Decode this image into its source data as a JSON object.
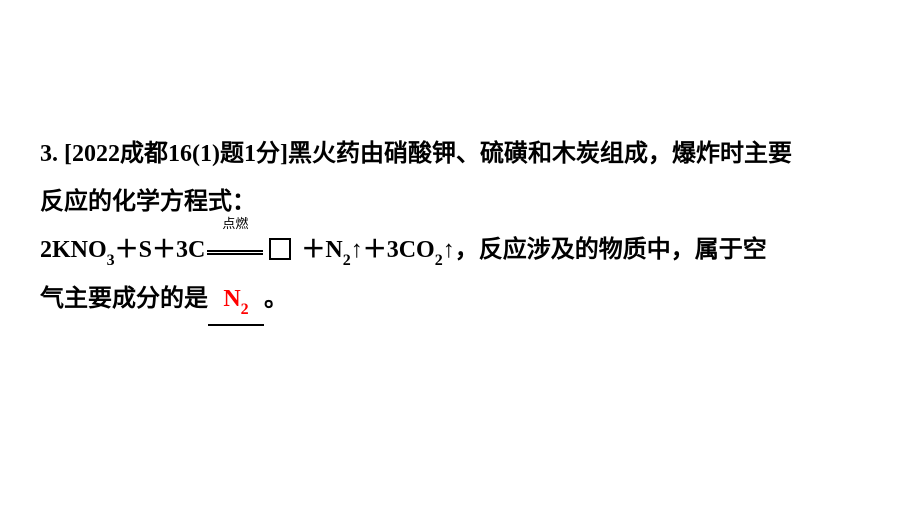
{
  "question": {
    "number": "3.",
    "source_prefix": "[2022成都16(1)题1分]",
    "text_part1": "黑火药由硝酸钾、硫磺和木炭组成，爆炸时主要",
    "text_part2": "反应的化学方程式：",
    "equation": {
      "reactant1": "2KNO",
      "reactant1_sub": "3",
      "plus1": "＋S＋3C",
      "condition": "点燃",
      "plus2": " ＋N",
      "n2_sub": "2",
      "arrow_up1": "↑＋3CO",
      "co2_sub": "2",
      "arrow_up2": "↑，"
    },
    "text_part3": "反应涉及的物质中，属于空",
    "text_part4": "气主要成分的是",
    "answer": "N",
    "answer_sub": "2",
    "period": "。"
  },
  "colors": {
    "text": "#000000",
    "answer": "#ff0000",
    "background": "#ffffff"
  },
  "typography": {
    "body_fontsize": 24,
    "sub_fontsize": 16,
    "condition_fontsize": 13,
    "line_height": 2.0,
    "font_weight": "bold"
  }
}
